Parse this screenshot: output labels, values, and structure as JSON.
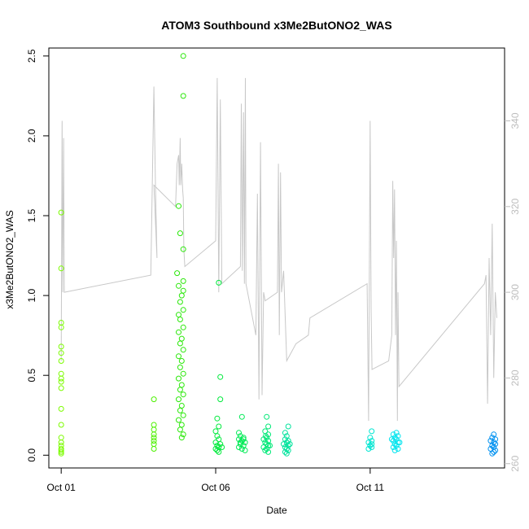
{
  "chart_data": {
    "type": "scatter",
    "title": "ATOM3 Southbound x3Me2ButONO2_WAS",
    "xlabel": "Date",
    "ylabel": "x3Me2ButONO2_WAS",
    "x_tick_labels": [
      "Oct 01",
      "Oct 06",
      "Oct 11"
    ],
    "x_tick_values": [
      0,
      5,
      10
    ],
    "xlim": [
      -0.4,
      14.35
    ],
    "ylim": [
      -0.08,
      2.55
    ],
    "y_ticks": [
      0.0,
      0.5,
      1.0,
      1.5,
      2.0,
      2.5
    ],
    "y_tick_labels": [
      "0.0",
      "0.5",
      "1.0",
      "1.5",
      "2.0",
      "2.5"
    ],
    "y2lim": [
      259,
      357
    ],
    "y2_ticks": [
      260,
      280,
      300,
      320,
      340
    ],
    "y2_tick_labels": [
      "260",
      "280",
      "300",
      "320",
      "340"
    ],
    "grid": false,
    "secondary_line_color": "#c8c8c8",
    "secondary_tick_color": "#bdbdbd",
    "series": [
      {
        "color": "#7cfc00",
        "points": [
          [
            0.0,
            1.52
          ],
          [
            0.0,
            1.17
          ],
          [
            0.0,
            0.83
          ],
          [
            0.0,
            0.8
          ],
          [
            0.0,
            0.68
          ],
          [
            0.0,
            0.64
          ],
          [
            0.0,
            0.59
          ],
          [
            0.0,
            0.51
          ],
          [
            0.0,
            0.48
          ],
          [
            0.0,
            0.46
          ],
          [
            0.0,
            0.42
          ],
          [
            0.0,
            0.29
          ],
          [
            0.0,
            0.19
          ],
          [
            0.0,
            0.11
          ],
          [
            0.0,
            0.08
          ],
          [
            0.0,
            0.06
          ],
          [
            0.0,
            0.04
          ],
          [
            0.0,
            0.03
          ],
          [
            0.0,
            0.02
          ],
          [
            0.0,
            0.01
          ]
        ]
      },
      {
        "color": "#4cf000",
        "points": [
          [
            3.0,
            0.35
          ],
          [
            3.0,
            0.19
          ],
          [
            3.0,
            0.16
          ],
          [
            3.0,
            0.13
          ],
          [
            3.0,
            0.11
          ],
          [
            3.0,
            0.09
          ],
          [
            3.0,
            0.07
          ],
          [
            3.0,
            0.04
          ]
        ]
      },
      {
        "color": "#2be80a",
        "points": [
          [
            3.95,
            2.5
          ],
          [
            3.95,
            2.25
          ],
          [
            3.8,
            1.56
          ],
          [
            3.85,
            1.39
          ],
          [
            3.95,
            1.29
          ],
          [
            3.75,
            1.14
          ],
          [
            3.95,
            1.09
          ],
          [
            3.8,
            1.06
          ],
          [
            3.95,
            1.03
          ],
          [
            3.9,
            1.0
          ],
          [
            3.85,
            0.96
          ],
          [
            3.95,
            0.91
          ],
          [
            3.8,
            0.88
          ],
          [
            3.85,
            0.85
          ],
          [
            3.95,
            0.8
          ],
          [
            3.8,
            0.77
          ],
          [
            3.9,
            0.73
          ],
          [
            3.85,
            0.7
          ],
          [
            3.95,
            0.66
          ],
          [
            3.8,
            0.62
          ],
          [
            3.9,
            0.59
          ],
          [
            3.85,
            0.55
          ],
          [
            3.95,
            0.51
          ],
          [
            3.8,
            0.48
          ],
          [
            3.9,
            0.44
          ],
          [
            3.85,
            0.41
          ],
          [
            3.95,
            0.38
          ],
          [
            3.8,
            0.35
          ],
          [
            3.9,
            0.31
          ],
          [
            3.85,
            0.28
          ],
          [
            3.95,
            0.25
          ],
          [
            3.8,
            0.22
          ],
          [
            3.9,
            0.19
          ],
          [
            3.85,
            0.16
          ],
          [
            3.95,
            0.13
          ],
          [
            3.9,
            0.11
          ]
        ]
      },
      {
        "color": "#00ea3c",
        "points": [
          [
            5.1,
            1.08
          ],
          [
            5.15,
            0.49
          ],
          [
            5.15,
            0.35
          ],
          [
            5.05,
            0.23
          ],
          [
            5.1,
            0.18
          ],
          [
            5.0,
            0.15
          ],
          [
            5.05,
            0.12
          ],
          [
            5.1,
            0.1
          ],
          [
            5.0,
            0.08
          ],
          [
            5.05,
            0.06
          ],
          [
            5.1,
            0.05
          ],
          [
            5.0,
            0.04
          ],
          [
            5.05,
            0.03
          ],
          [
            5.1,
            0.02
          ],
          [
            5.15,
            0.07
          ],
          [
            5.2,
            0.05
          ]
        ]
      },
      {
        "color": "#00ea55",
        "points": [
          [
            5.85,
            0.24
          ],
          [
            5.75,
            0.14
          ],
          [
            5.8,
            0.12
          ],
          [
            5.9,
            0.11
          ],
          [
            5.75,
            0.1
          ],
          [
            5.85,
            0.09
          ],
          [
            5.95,
            0.08
          ],
          [
            5.8,
            0.07
          ],
          [
            5.9,
            0.06
          ],
          [
            5.75,
            0.05
          ],
          [
            5.85,
            0.04
          ],
          [
            5.95,
            0.03
          ],
          [
            5.8,
            0.08
          ],
          [
            5.9,
            0.1
          ]
        ]
      },
      {
        "color": "#00e877",
        "points": [
          [
            6.65,
            0.24
          ],
          [
            6.7,
            0.18
          ],
          [
            6.6,
            0.15
          ],
          [
            6.7,
            0.13
          ],
          [
            6.65,
            0.11
          ],
          [
            6.55,
            0.1
          ],
          [
            6.7,
            0.09
          ],
          [
            6.6,
            0.08
          ],
          [
            6.65,
            0.07
          ],
          [
            6.7,
            0.06
          ],
          [
            6.55,
            0.05
          ],
          [
            6.65,
            0.04
          ],
          [
            6.6,
            0.03
          ],
          [
            6.7,
            0.02
          ],
          [
            6.75,
            0.06
          ],
          [
            6.62,
            0.12
          ]
        ]
      },
      {
        "color": "#00e39c",
        "points": [
          [
            7.35,
            0.18
          ],
          [
            7.25,
            0.14
          ],
          [
            7.3,
            0.12
          ],
          [
            7.25,
            0.1
          ],
          [
            7.35,
            0.09
          ],
          [
            7.3,
            0.08
          ],
          [
            7.2,
            0.07
          ],
          [
            7.35,
            0.06
          ],
          [
            7.25,
            0.05
          ],
          [
            7.3,
            0.04
          ],
          [
            7.35,
            0.03
          ],
          [
            7.25,
            0.02
          ],
          [
            7.3,
            0.01
          ],
          [
            7.4,
            0.07
          ]
        ]
      },
      {
        "color": "#00e6d2",
        "points": [
          [
            10.05,
            0.15
          ],
          [
            10.0,
            0.11
          ],
          [
            10.05,
            0.09
          ],
          [
            9.95,
            0.08
          ],
          [
            10.05,
            0.07
          ],
          [
            10.0,
            0.06
          ],
          [
            10.05,
            0.05
          ],
          [
            9.95,
            0.04
          ]
        ]
      },
      {
        "color": "#00e4ee",
        "points": [
          [
            10.85,
            0.14
          ],
          [
            10.75,
            0.13
          ],
          [
            10.9,
            0.12
          ],
          [
            10.8,
            0.11
          ],
          [
            10.85,
            0.1
          ],
          [
            10.75,
            0.09
          ],
          [
            10.9,
            0.08
          ],
          [
            10.8,
            0.07
          ],
          [
            10.85,
            0.06
          ],
          [
            10.75,
            0.05
          ],
          [
            10.9,
            0.04
          ],
          [
            10.8,
            0.03
          ],
          [
            10.95,
            0.08
          ],
          [
            10.7,
            0.1
          ]
        ]
      },
      {
        "color": "#0091f0",
        "points": [
          [
            14.0,
            0.13
          ],
          [
            13.95,
            0.11
          ],
          [
            14.05,
            0.1
          ],
          [
            13.9,
            0.09
          ],
          [
            14.0,
            0.08
          ],
          [
            14.05,
            0.07
          ],
          [
            13.95,
            0.06
          ],
          [
            14.0,
            0.05
          ],
          [
            13.9,
            0.04
          ],
          [
            14.05,
            0.03
          ],
          [
            14.0,
            0.02
          ],
          [
            13.95,
            0.01
          ]
        ]
      }
    ],
    "secondary_line": [
      [
        0.0,
        284
      ],
      [
        0.03,
        340
      ],
      [
        0.05,
        300
      ],
      [
        0.08,
        336
      ],
      [
        0.1,
        300
      ],
      [
        2.9,
        304
      ],
      [
        3.0,
        348
      ],
      [
        3.05,
        325
      ],
      [
        3.1,
        308
      ],
      [
        3.0,
        325
      ],
      [
        3.7,
        320
      ],
      [
        3.75,
        330
      ],
      [
        3.8,
        332
      ],
      [
        3.82,
        325
      ],
      [
        3.85,
        336
      ],
      [
        3.87,
        325
      ],
      [
        3.9,
        330
      ],
      [
        3.93,
        324
      ],
      [
        3.95,
        322
      ],
      [
        3.97,
        310
      ],
      [
        4.0,
        306
      ],
      [
        5.0,
        312
      ],
      [
        5.05,
        350
      ],
      [
        5.1,
        300
      ],
      [
        5.15,
        345
      ],
      [
        5.2,
        302
      ],
      [
        5.8,
        306
      ],
      [
        5.83,
        344
      ],
      [
        5.86,
        305
      ],
      [
        5.9,
        342
      ],
      [
        5.93,
        302
      ],
      [
        5.96,
        350
      ],
      [
        5.98,
        302
      ],
      [
        6.3,
        290
      ],
      [
        6.35,
        323
      ],
      [
        6.4,
        275
      ],
      [
        6.45,
        335
      ],
      [
        6.5,
        276
      ],
      [
        6.55,
        300
      ],
      [
        6.6,
        298
      ],
      [
        7.0,
        300
      ],
      [
        7.03,
        330
      ],
      [
        7.06,
        290
      ],
      [
        7.1,
        328
      ],
      [
        7.13,
        300
      ],
      [
        7.2,
        305
      ],
      [
        7.3,
        284
      ],
      [
        7.6,
        288
      ],
      [
        8.0,
        290
      ],
      [
        8.05,
        294
      ],
      [
        9.9,
        302
      ],
      [
        9.95,
        270
      ],
      [
        10.0,
        340
      ],
      [
        10.03,
        296
      ],
      [
        10.06,
        282
      ],
      [
        10.6,
        284
      ],
      [
        10.7,
        290
      ],
      [
        10.73,
        326
      ],
      [
        10.76,
        308
      ],
      [
        10.79,
        324
      ],
      [
        10.82,
        290
      ],
      [
        10.85,
        312
      ],
      [
        10.88,
        270
      ],
      [
        10.9,
        300
      ],
      [
        10.93,
        278
      ],
      [
        13.7,
        302
      ],
      [
        13.75,
        304
      ],
      [
        13.8,
        274
      ],
      [
        13.85,
        308
      ],
      [
        13.9,
        290
      ],
      [
        13.95,
        316
      ],
      [
        14.0,
        280
      ],
      [
        14.05,
        300
      ],
      [
        14.1,
        294
      ]
    ]
  }
}
